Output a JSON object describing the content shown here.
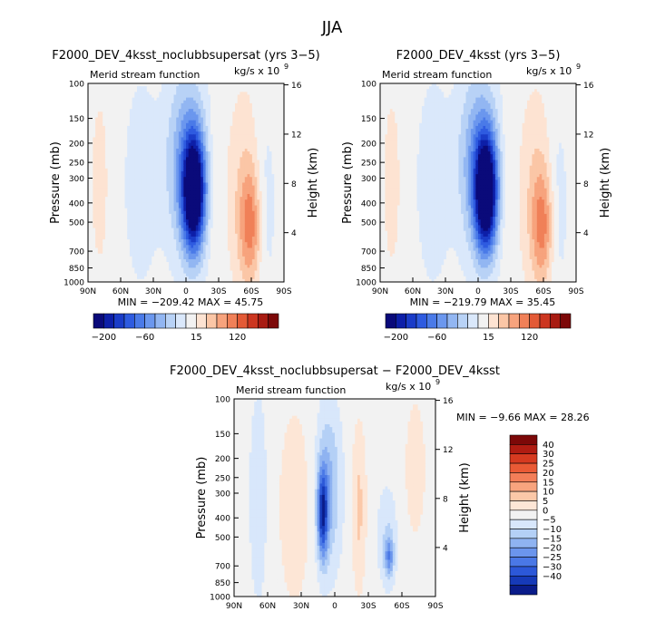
{
  "figure": {
    "suptitle": "JJA"
  },
  "chart_data": [
    {
      "type": "heatmap",
      "title": "F2000_DEV_4ksst_noclubbsupersat (yrs 3−5)",
      "left_title": "Merid stream function",
      "units": "kg/s x 10",
      "units_exp": "9",
      "ylabel": "Pressure (mb)",
      "ylabel_right": "Height (km)",
      "x_ticks": [
        "90N",
        "60N",
        "30N",
        "0",
        "30S",
        "60S",
        "90S"
      ],
      "y_ticks": [
        "100",
        "150",
        "200",
        "250",
        "300",
        "400",
        "500",
        "700",
        "850",
        "1000"
      ],
      "y_ticks_right": [
        "16",
        "12",
        "8",
        "4"
      ],
      "xlim": [
        90,
        -90
      ],
      "ylim": [
        1000,
        100
      ],
      "min_label": "MIN",
      "max_label": "MAX",
      "min_value": "−209.42",
      "max_value": "45.75",
      "colorbar_labels": [
        "−200",
        "−60",
        "15",
        "120"
      ]
    },
    {
      "type": "heatmap",
      "title": "F2000_DEV_4ksst (yrs 3−5)",
      "left_title": "Merid stream function",
      "units": "kg/s x 10",
      "units_exp": "9",
      "ylabel": "Pressure (mb)",
      "ylabel_right": "Height (km)",
      "x_ticks": [
        "90N",
        "60N",
        "30N",
        "0",
        "30S",
        "60S",
        "90S"
      ],
      "y_ticks": [
        "100",
        "150",
        "200",
        "250",
        "300",
        "400",
        "500",
        "700",
        "850",
        "1000"
      ],
      "y_ticks_right": [
        "16",
        "12",
        "8",
        "4"
      ],
      "xlim": [
        90,
        -90
      ],
      "ylim": [
        1000,
        100
      ],
      "min_label": "MIN",
      "max_label": "MAX",
      "min_value": "−219.79",
      "max_value": "35.45",
      "colorbar_labels": [
        "−200",
        "−60",
        "15",
        "120"
      ]
    },
    {
      "type": "heatmap",
      "title": "F2000_DEV_4ksst_noclubbsupersat − F2000_DEV_4ksst",
      "left_title": "Merid stream function",
      "units": "kg/s x 10",
      "units_exp": "9",
      "ylabel": "Pressure (mb)",
      "ylabel_right": "Height (km)",
      "x_ticks": [
        "90N",
        "60N",
        "30N",
        "0",
        "30S",
        "60S",
        "90S"
      ],
      "y_ticks": [
        "100",
        "150",
        "200",
        "250",
        "300",
        "400",
        "500",
        "700",
        "850",
        "1000"
      ],
      "y_ticks_right": [
        "16",
        "12",
        "8",
        "4"
      ],
      "xlim": [
        90,
        -90
      ],
      "ylim": [
        1000,
        100
      ],
      "min_label": "MIN",
      "max_label": "MAX",
      "min_value": "−9.66",
      "max_value": "28.26",
      "colorbar_labels": [
        "40",
        "30",
        "25",
        "20",
        "15",
        "10",
        "5",
        "0",
        "−5",
        "−10",
        "−15",
        "−20",
        "−25",
        "−30",
        "−40"
      ]
    }
  ],
  "colors": {
    "scale": [
      "#0a0a7a",
      "#0d1fa8",
      "#1a3cc8",
      "#2e5be0",
      "#4a7ae8",
      "#6b97ee",
      "#92b6f2",
      "#b8d2f6",
      "#dae8fb",
      "#f2f2f2",
      "#fde3d2",
      "#fbc6a6",
      "#f7a37d",
      "#f08058",
      "#e35a36",
      "#cc3620",
      "#a81b12",
      "#7c0808"
    ],
    "diff_scale": [
      "#7c0808",
      "#b01c12",
      "#d63a20",
      "#ea5a35",
      "#f37e58",
      "#f8a47e",
      "#fbc8a8",
      "#fde6d6",
      "#f2f2f2",
      "#d8e7fb",
      "#b4d0f6",
      "#8fb3f1",
      "#6b95ed",
      "#4a78e6",
      "#2c58d8",
      "#163ab8",
      "#0a1c8a"
    ]
  }
}
